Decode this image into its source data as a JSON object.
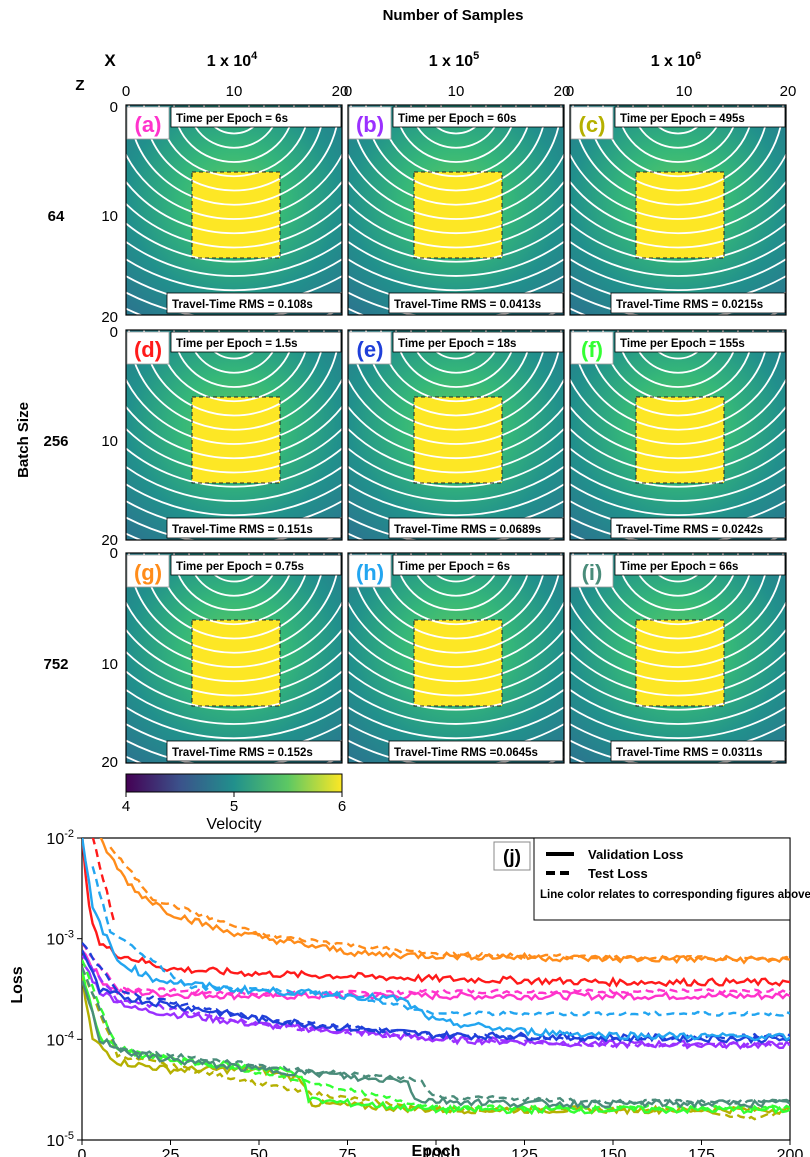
{
  "figure": {
    "top_title": "Number of Samples",
    "x_axis_symbol": "X",
    "z_axis_symbol": "Z",
    "row_axis_title": "Batch Size",
    "columns": [
      {
        "label": "1 x 10",
        "exp": "4"
      },
      {
        "label": "1 x 10",
        "exp": "5"
      },
      {
        "label": "1 x 10",
        "exp": "6"
      }
    ],
    "rows": [
      "64",
      "256",
      "752"
    ],
    "x_ticks": [
      "0",
      "10",
      "20"
    ],
    "z_ticks": [
      "0",
      "10",
      "20"
    ],
    "colorbar": {
      "label": "Velocity",
      "ticks": [
        "4",
        "5",
        "6"
      ],
      "colors": [
        "#440154",
        "#3b528b",
        "#21908c",
        "#5dc863",
        "#fde725"
      ]
    },
    "panels": [
      {
        "tag": "(a)",
        "tag_color": "#ff33cc",
        "time_label": "Time per Epoch = ",
        "time": "6s",
        "rms_label": "Travel-Time RMS = ",
        "rms": "0.108s"
      },
      {
        "tag": "(b)",
        "tag_color": "#9b30ff",
        "time_label": "Time per Epoch = ",
        "time": "60s",
        "rms_label": "Travel-Time RMS = ",
        "rms": "0.0413s"
      },
      {
        "tag": "(c)",
        "tag_color": "#b5b000",
        "time_label": "Time per Epoch = ",
        "time": "495s",
        "rms_label": "Travel-Time RMS = ",
        "rms": "0.0215s"
      },
      {
        "tag": "(d)",
        "tag_color": "#ff1a1a",
        "time_label": "Time per Epoch = ",
        "time": "1.5s",
        "rms_label": "Travel-Time RMS = ",
        "rms": "0.151s"
      },
      {
        "tag": "(e)",
        "tag_color": "#1f3fd9",
        "time_label": "Time per Epoch = ",
        "time": "18s",
        "rms_label": "Travel-Time RMS = ",
        "rms": "0.0689s"
      },
      {
        "tag": "(f)",
        "tag_color": "#33ff33",
        "time_label": "Time per Epoch = ",
        "time": "155s",
        "rms_label": "Travel-Time RMS = ",
        "rms": "0.0242s"
      },
      {
        "tag": "(g)",
        "tag_color": "#ff8c1a",
        "time_label": "Time per Epoch = ",
        "time": "0.75s",
        "rms_label": "Travel-Time RMS = ",
        "rms": "0.152s"
      },
      {
        "tag": "(h)",
        "tag_color": "#22a5f0",
        "time_label": "Time per Epoch = ",
        "time": "6s",
        "rms_label": "Travel-Time RMS =",
        "rms": "0.0645s"
      },
      {
        "tag": "(i)",
        "tag_color": "#4a8c7a",
        "time_label": "Time per Epoch = ",
        "time": "66s",
        "rms_label": "Travel-Time RMS = ",
        "rms": "0.0311s"
      }
    ]
  },
  "chart_data": {
    "type": "line",
    "panel_tag": "(j)",
    "xlabel": "Epoch",
    "ylabel": "Loss",
    "xlim": [
      0,
      200
    ],
    "ylim": [
      1e-05,
      0.01
    ],
    "yscale": "log",
    "x_ticks": [
      0,
      25,
      50,
      75,
      100,
      125,
      150,
      175,
      200
    ],
    "y_ticks": [
      {
        "base": "10",
        "exp": "-5",
        "value": 1e-05
      },
      {
        "base": "10",
        "exp": "-4",
        "value": 0.0001
      },
      {
        "base": "10",
        "exp": "-3",
        "value": 0.001
      },
      {
        "base": "10",
        "exp": "-2",
        "value": 0.01
      }
    ],
    "legend": {
      "items": [
        {
          "label": "Validation Loss",
          "style": "solid"
        },
        {
          "label": "Test Loss",
          "style": "dashed"
        }
      ],
      "note": "Line color relates to corresponding figures above",
      "position": "top-right"
    },
    "series": [
      {
        "name": "(a)",
        "color": "#ff33cc",
        "validation": [
          [
            0,
            0.0008
          ],
          [
            5,
            0.0004
          ],
          [
            10,
            0.0003
          ],
          [
            25,
            0.00028
          ],
          [
            50,
            0.00027
          ],
          [
            100,
            0.00027
          ],
          [
            150,
            0.00027
          ],
          [
            200,
            0.00027
          ]
        ],
        "test": [
          [
            0,
            0.0009
          ],
          [
            10,
            0.00032
          ],
          [
            50,
            0.00028
          ],
          [
            100,
            0.0003
          ],
          [
            150,
            0.0003
          ],
          [
            200,
            0.0003
          ]
        ]
      },
      {
        "name": "(b)",
        "color": "#9b30ff",
        "validation": [
          [
            0,
            0.0006
          ],
          [
            5,
            0.0003
          ],
          [
            15,
            0.0002
          ],
          [
            25,
            0.00018
          ],
          [
            50,
            0.00014
          ],
          [
            75,
            0.00012
          ],
          [
            100,
            0.0001
          ],
          [
            150,
            9e-05
          ],
          [
            200,
            8.8e-05
          ]
        ],
        "test": [
          [
            0,
            0.0007
          ],
          [
            10,
            0.00025
          ],
          [
            50,
            0.00014
          ],
          [
            100,
            0.0001
          ],
          [
            150,
            8.8e-05
          ],
          [
            200,
            8.8e-05
          ]
        ]
      },
      {
        "name": "(c)",
        "color": "#b5b000",
        "validation": [
          [
            0,
            0.0004
          ],
          [
            3,
            0.0001
          ],
          [
            10,
            6e-05
          ],
          [
            25,
            5e-05
          ],
          [
            50,
            5e-05
          ],
          [
            62,
            4e-05
          ],
          [
            65,
            2.3e-05
          ],
          [
            100,
            2e-05
          ],
          [
            150,
            2e-05
          ],
          [
            200,
            2e-05
          ]
        ],
        "test": [
          [
            0,
            0.0005
          ],
          [
            10,
            7e-05
          ],
          [
            62,
            3e-05
          ],
          [
            100,
            2e-05
          ],
          [
            175,
            2e-05
          ],
          [
            190,
            1.6e-05
          ],
          [
            200,
            2e-05
          ]
        ]
      },
      {
        "name": "(d)",
        "color": "#ff1a1a",
        "validation": [
          [
            0,
            0.01
          ],
          [
            2,
            0.002
          ],
          [
            5,
            0.0009
          ],
          [
            10,
            0.0007
          ],
          [
            25,
            0.0005
          ],
          [
            50,
            0.00045
          ],
          [
            100,
            0.0004
          ],
          [
            150,
            0.00037
          ],
          [
            200,
            0.00037
          ]
        ],
        "test": [
          [
            3,
            0.01
          ],
          [
            6,
            0.004
          ],
          [
            9,
            0.0015
          ]
        ]
      },
      {
        "name": "(e)",
        "color": "#1f3fd9",
        "validation": [
          [
            0,
            0.0008
          ],
          [
            5,
            0.0003
          ],
          [
            15,
            0.00025
          ],
          [
            25,
            0.00022
          ],
          [
            50,
            0.00016
          ],
          [
            75,
            0.00013
          ],
          [
            100,
            0.00011
          ],
          [
            150,
            0.000105
          ],
          [
            200,
            0.0001
          ]
        ],
        "test": [
          [
            0,
            0.0009
          ],
          [
            10,
            0.0003
          ],
          [
            50,
            0.00016
          ],
          [
            100,
            0.00011
          ],
          [
            150,
            0.0001
          ],
          [
            200,
            0.00011
          ]
        ]
      },
      {
        "name": "(f)",
        "color": "#33ff33",
        "validation": [
          [
            0,
            0.0005
          ],
          [
            5,
            0.0001
          ],
          [
            15,
            7e-05
          ],
          [
            30,
            6e-05
          ],
          [
            55,
            5e-05
          ],
          [
            62,
            4.5e-05
          ],
          [
            64,
            2.5e-05
          ],
          [
            100,
            2e-05
          ],
          [
            150,
            2e-05
          ],
          [
            200,
            2e-05
          ]
        ],
        "test": [
          [
            0,
            0.0006
          ],
          [
            10,
            8e-05
          ],
          [
            60,
            4e-05
          ],
          [
            100,
            2.1e-05
          ],
          [
            150,
            2.1e-05
          ],
          [
            200,
            2.1e-05
          ]
        ]
      },
      {
        "name": "(g)",
        "color": "#ff8c1a",
        "validation": [
          [
            5,
            0.01
          ],
          [
            10,
            0.005
          ],
          [
            15,
            0.003
          ],
          [
            25,
            0.0018
          ],
          [
            40,
            0.0012
          ],
          [
            60,
            0.0009
          ],
          [
            80,
            0.0007
          ],
          [
            100,
            0.00068
          ],
          [
            150,
            0.00063
          ],
          [
            200,
            0.00062
          ]
        ],
        "test": [
          [
            8,
            0.008
          ],
          [
            20,
            0.0025
          ],
          [
            50,
            0.0011
          ],
          [
            100,
            0.0007
          ],
          [
            150,
            0.00065
          ],
          [
            200,
            0.00063
          ]
        ]
      },
      {
        "name": "(h)",
        "color": "#22a5f0",
        "validation": [
          [
            0,
            0.01
          ],
          [
            3,
            0.002
          ],
          [
            10,
            0.0006
          ],
          [
            20,
            0.0004
          ],
          [
            40,
            0.00032
          ],
          [
            70,
            0.00028
          ],
          [
            90,
            0.00025
          ],
          [
            100,
            0.00015
          ],
          [
            125,
            0.00012
          ],
          [
            150,
            0.00011
          ],
          [
            200,
            0.000105
          ]
        ],
        "test": [
          [
            3,
            0.005
          ],
          [
            8,
            0.0012
          ],
          [
            30,
            0.00033
          ],
          [
            75,
            0.00028
          ],
          [
            100,
            0.00018
          ],
          [
            150,
            0.00018
          ],
          [
            200,
            0.00018
          ]
        ]
      },
      {
        "name": "(i)",
        "color": "#4a8c7a",
        "validation": [
          [
            0,
            0.0004
          ],
          [
            5,
            0.0001
          ],
          [
            15,
            7e-05
          ],
          [
            30,
            6e-05
          ],
          [
            50,
            5e-05
          ],
          [
            70,
            4.5e-05
          ],
          [
            80,
            4e-05
          ],
          [
            92,
            4e-05
          ],
          [
            94,
            2.5e-05
          ],
          [
            125,
            2.3e-05
          ],
          [
            150,
            2.3e-05
          ],
          [
            200,
            2.3e-05
          ]
        ],
        "test": [
          [
            0,
            0.0005
          ],
          [
            10,
            8e-05
          ],
          [
            60,
            5e-05
          ],
          [
            95,
            4e-05
          ],
          [
            100,
            2.7e-05
          ],
          [
            150,
            2.4e-05
          ],
          [
            200,
            2.4e-05
          ]
        ]
      }
    ]
  }
}
